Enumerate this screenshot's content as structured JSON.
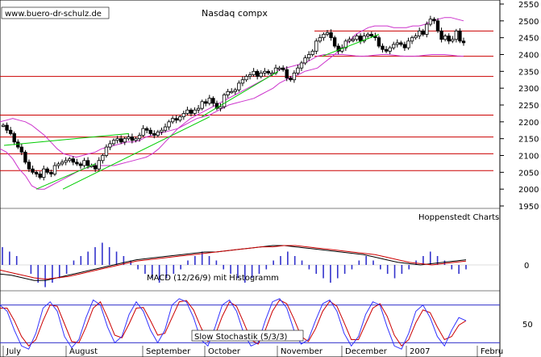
{
  "header": {
    "website": "www.buero-dr-schulz.de",
    "title": "Nasdaq compx",
    "source": "Hoppenstedt Charts"
  },
  "colors": {
    "background": "#ffffff",
    "candle": "#000000",
    "bollinger": "#cc33cc",
    "trendline": "#00cc00",
    "support_resistance": "#cc0000",
    "macd_line": "#000000",
    "macd_signal": "#cc0000",
    "histogram": "#3333cc",
    "stochastic_k": "#3333ff",
    "stochastic_d": "#cc0000",
    "stoch_bounds": "#3333cc"
  },
  "chart_data": {
    "type": "candlestick",
    "title": "Nasdaq compx",
    "y_axis_ticks": [
      "2550",
      "2500",
      "2450",
      "2400",
      "2350",
      "2300",
      "2250",
      "2200",
      "2150",
      "2100",
      "2050",
      "2000",
      "1950"
    ],
    "ylim": [
      1950,
      2550
    ],
    "x_tick_labels": [
      "July",
      "August",
      "September",
      "October",
      "November",
      "December",
      "2007",
      "Febru"
    ],
    "grid": false,
    "horizontal_lines": [
      2470,
      2395,
      2335,
      2220,
      2155,
      2105,
      2055
    ],
    "trendlines": [
      {
        "from": [
          "July",
          2130
        ],
        "to": [
          "July",
          2165
        ]
      },
      {
        "from": [
          "July",
          2000
        ],
        "to": [
          "August",
          2075
        ]
      },
      {
        "from": [
          "August",
          2000
        ],
        "to": [
          "October",
          2215
        ]
      },
      {
        "from": [
          "October",
          2215
        ],
        "to": [
          "November",
          2350
        ]
      },
      {
        "from": [
          "November",
          2395
        ],
        "to": [
          "December",
          2460
        ]
      }
    ],
    "price_series": [
      2190,
      2175,
      2165,
      2140,
      2125,
      2110,
      2080,
      2060,
      2050,
      2045,
      2035,
      2060,
      2050,
      2045,
      2070,
      2075,
      2080,
      2085,
      2090,
      2080,
      2075,
      2070,
      2085,
      2070,
      2070,
      2060,
      2085,
      2100,
      2125,
      2135,
      2145,
      2150,
      2140,
      2150,
      2155,
      2145,
      2150,
      2160,
      2180,
      2175,
      2165,
      2160,
      2170,
      2175,
      2185,
      2200,
      2210,
      2205,
      2215,
      2225,
      2235,
      2225,
      2235,
      2240,
      2260,
      2255,
      2270,
      2255,
      2240,
      2245,
      2280,
      2290,
      2290,
      2295,
      2315,
      2325,
      2335,
      2340,
      2350,
      2335,
      2345,
      2350,
      2345,
      2345,
      2360,
      2360,
      2355,
      2330,
      2325,
      2345,
      2360,
      2375,
      2390,
      2400,
      2410,
      2440,
      2450,
      2460,
      2465,
      2450,
      2425,
      2410,
      2420,
      2440,
      2445,
      2445,
      2455,
      2440,
      2455,
      2460,
      2455,
      2450,
      2425,
      2415,
      2410,
      2420,
      2430,
      2435,
      2430,
      2420,
      2440,
      2450,
      2455,
      2470,
      2460,
      2490,
      2505,
      2500,
      2470,
      2445,
      2455,
      2440,
      2445,
      2470,
      2440,
      2435
    ],
    "bollinger_upper": [
      2200,
      2205,
      2210,
      2205,
      2200,
      2190,
      2175,
      2160,
      2140,
      2120,
      2105,
      2100,
      2095,
      2100,
      2105,
      2110,
      2120,
      2125,
      2130,
      2135,
      2140,
      2140,
      2145,
      2155,
      2160,
      2165,
      2170,
      2175,
      2180,
      2190,
      2200,
      2210,
      2215,
      2220,
      2230,
      2240,
      2250,
      2255,
      2260,
      2265,
      2270,
      2280,
      2290,
      2300,
      2315,
      2325,
      2335,
      2340,
      2350,
      2355,
      2360,
      2375,
      2390,
      2405,
      2420,
      2440,
      2460,
      2470,
      2480,
      2485,
      2485,
      2485,
      2480,
      2480,
      2480,
      2485,
      2485,
      2490,
      2500,
      2505,
      2510,
      2510,
      2505,
      2500
    ],
    "bollinger_lower": [
      2120,
      2110,
      2090,
      2060,
      2040,
      2010,
      2000,
      2000,
      2010,
      2020,
      2030,
      2040,
      2050,
      2060,
      2065,
      2070,
      2070,
      2070,
      2070,
      2075,
      2080,
      2085,
      2090,
      2095,
      2105,
      2120,
      2140,
      2160,
      2180,
      2195,
      2210,
      2220,
      2230,
      2240,
      2250,
      2260,
      2270,
      2280,
      2290,
      2300,
      2310,
      2320,
      2330,
      2345,
      2355,
      2360,
      2365,
      2370,
      2375,
      2385,
      2395,
      2400,
      2400,
      2400,
      2400,
      2398,
      2396,
      2395,
      2396,
      2398,
      2400,
      2400,
      2398,
      2396,
      2395,
      2395,
      2396,
      2398,
      2400,
      2400,
      2400,
      2398,
      2396,
      2395
    ],
    "macd": {
      "label": "MACD (12/26/9) mit Histogramm",
      "zero_label": "0",
      "macd_line": [
        -3.5,
        -4,
        -5,
        -6,
        -6,
        -5,
        -4,
        -3,
        -2,
        -1,
        0,
        1,
        2,
        2.5,
        3,
        3.5,
        4,
        4.5,
        5,
        5,
        5.5,
        6,
        6.5,
        7,
        7.5,
        7.5,
        7,
        6.5,
        6,
        5.5,
        5,
        4.5,
        4,
        3,
        2,
        1,
        0.5,
        0,
        0.5,
        1,
        1.5,
        2
      ],
      "signal_line": [
        -2,
        -3,
        -4,
        -5,
        -5.5,
        -5,
        -4.5,
        -3.5,
        -2.5,
        -1.5,
        -0.5,
        0.5,
        1.5,
        2,
        2.5,
        3,
        3.5,
        4,
        4.5,
        5,
        5.5,
        6,
        6.5,
        7,
        7,
        7.5,
        7.5,
        7,
        6.5,
        6,
        5.5,
        5,
        4.5,
        4,
        3,
        2,
        1,
        0.5,
        0,
        0.5,
        1,
        1.5
      ],
      "histogram": [
        4,
        3,
        2,
        0,
        -2,
        -4,
        -5,
        -4,
        -3,
        -2,
        1,
        2,
        3,
        4,
        5,
        4,
        3,
        2,
        1,
        -1,
        -2,
        -3,
        -4,
        -3,
        -2,
        -1,
        1,
        2,
        3,
        2,
        1,
        -1,
        -2,
        -3,
        -4,
        -3,
        -2,
        -1,
        1,
        2,
        3,
        2,
        1,
        -1,
        -2,
        -3,
        -4,
        -3,
        -2,
        -1,
        1,
        2,
        1,
        -1,
        -2,
        -3,
        -2,
        -1,
        1,
        2,
        3,
        2,
        1,
        -1,
        -2,
        -1
      ]
    },
    "stochastic": {
      "label": "Slow Stochastik (5/3/3)",
      "tick_label": "50",
      "upper_bound": 80,
      "lower_bound": 20,
      "k": [
        80,
        70,
        40,
        15,
        10,
        35,
        75,
        85,
        70,
        30,
        12,
        25,
        60,
        88,
        80,
        45,
        20,
        30,
        65,
        85,
        70,
        40,
        20,
        40,
        80,
        90,
        85,
        60,
        25,
        15,
        45,
        80,
        88,
        70,
        35,
        15,
        20,
        55,
        85,
        90,
        75,
        40,
        18,
        25,
        55,
        82,
        88,
        70,
        35,
        15,
        30,
        65,
        85,
        80,
        45,
        15,
        10,
        35,
        70,
        80,
        60,
        30,
        15,
        40,
        60,
        55
      ],
      "d": [
        75,
        75,
        55,
        30,
        15,
        25,
        55,
        80,
        78,
        50,
        22,
        20,
        45,
        75,
        85,
        60,
        32,
        28,
        50,
        75,
        76,
        55,
        32,
        35,
        60,
        85,
        87,
        72,
        45,
        22,
        32,
        62,
        85,
        78,
        52,
        25,
        18,
        40,
        70,
        88,
        82,
        58,
        30,
        22,
        42,
        70,
        86,
        78,
        52,
        25,
        25,
        50,
        75,
        82,
        62,
        32,
        15,
        25,
        52,
        72,
        68,
        45,
        25,
        30,
        48,
        55
      ]
    }
  }
}
